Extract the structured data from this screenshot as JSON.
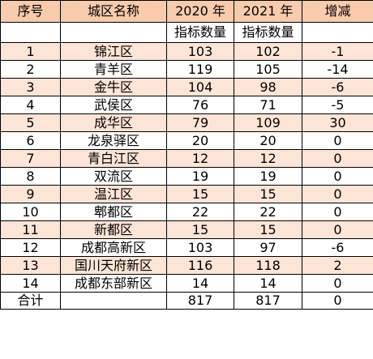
{
  "headers": {
    "seq": "序号",
    "district": "城区名称",
    "y2020": "2020 年",
    "y2021": "2021 年",
    "change": "增减",
    "y2020_sub": "指标数量",
    "y2021_sub": "指标数量"
  },
  "rows": [
    {
      "seq": "1",
      "district": "锦江区",
      "y2020": "103",
      "y2021": "102",
      "change": "-1"
    },
    {
      "seq": "2",
      "district": "青羊区",
      "y2020": "119",
      "y2021": "105",
      "change": "-14"
    },
    {
      "seq": "3",
      "district": "金牛区",
      "y2020": "104",
      "y2021": "98",
      "change": "-6"
    },
    {
      "seq": "4",
      "district": "武侯区",
      "y2020": "76",
      "y2021": "71",
      "change": "-5"
    },
    {
      "seq": "5",
      "district": "成华区",
      "y2020": "79",
      "y2021": "109",
      "change": "30"
    },
    {
      "seq": "6",
      "district": "龙泉驿区",
      "y2020": "20",
      "y2021": "20",
      "change": "0"
    },
    {
      "seq": "7",
      "district": "青白江区",
      "y2020": "12",
      "y2021": "12",
      "change": "0"
    },
    {
      "seq": "8",
      "district": "双流区",
      "y2020": "19",
      "y2021": "19",
      "change": "0"
    },
    {
      "seq": "9",
      "district": "温江区",
      "y2020": "15",
      "y2021": "15",
      "change": "0"
    },
    {
      "seq": "10",
      "district": "郫都区",
      "y2020": "22",
      "y2021": "22",
      "change": "0"
    },
    {
      "seq": "11",
      "district": "新都区",
      "y2020": "15",
      "y2021": "15",
      "change": "0"
    },
    {
      "seq": "12",
      "district": "成都高新区",
      "y2020": "103",
      "y2021": "97",
      "change": "-6"
    },
    {
      "seq": "13",
      "district": "国川天府新区",
      "y2020": "116",
      "y2021": "118",
      "change": "2"
    },
    {
      "seq": "14",
      "district": "成都东部新区",
      "y2020": "14",
      "y2021": "14",
      "change": "0"
    }
  ],
  "total": {
    "label": "合计",
    "y2020": "817",
    "y2021": "817",
    "change": "0"
  },
  "colors": {
    "header_fill": "#f8cbad",
    "stripe_fill": "#fce4d6",
    "border": "#000000"
  }
}
